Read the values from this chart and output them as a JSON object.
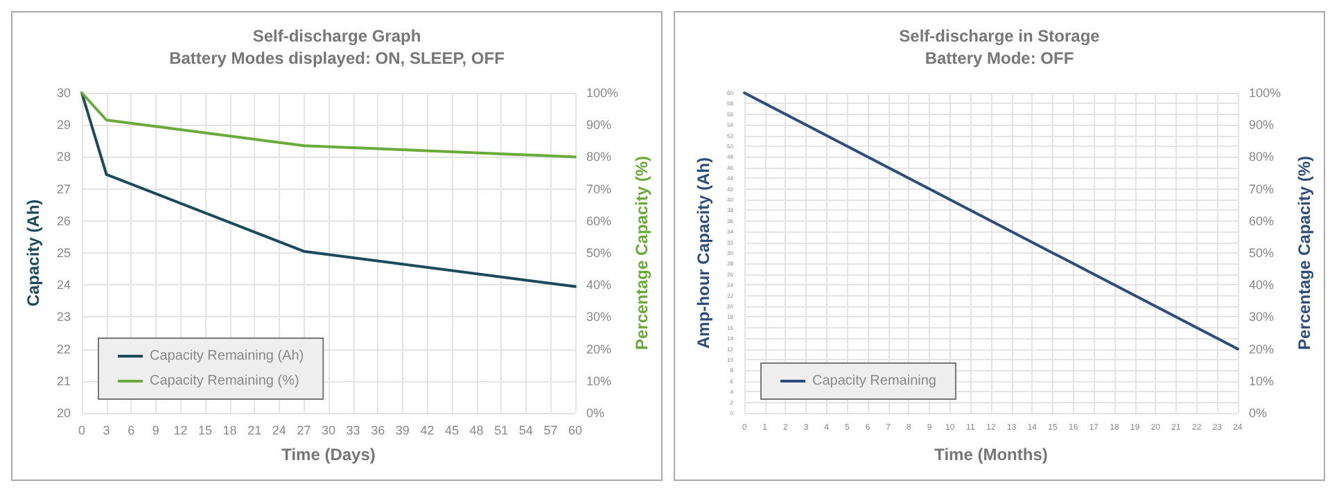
{
  "chart_data": [
    {
      "type": "line",
      "title": "Self-discharge Graph",
      "subtitle": "Battery Modes displayed: ON, SLEEP, OFF",
      "xlabel": "Time (Days)",
      "ylabel": "Capacity (Ah)",
      "y2label": "Percentage Capacity (%)",
      "x": [
        0,
        3,
        27,
        60
      ],
      "series": [
        {
          "name": "Capacity Remaining (Ah)",
          "color": "#1b4a5a",
          "values": [
            30,
            27.45,
            25.05,
            23.95
          ]
        },
        {
          "name": "Capacity Remaining (%)",
          "color": "#6aaa3a",
          "axis": "y2",
          "values": [
            100,
            91.5,
            83.5,
            80
          ]
        }
      ],
      "xlim": [
        0,
        60
      ],
      "xticks": [
        0,
        3,
        6,
        9,
        12,
        15,
        18,
        21,
        24,
        27,
        30,
        33,
        36,
        39,
        42,
        45,
        48,
        51,
        54,
        57,
        60
      ],
      "ylim": [
        20,
        30
      ],
      "yticks": [
        20,
        21,
        22,
        23,
        24,
        25,
        26,
        27,
        28,
        29,
        30
      ],
      "y2lim": [
        0,
        100
      ],
      "y2ticks": [
        {
          "value": 0,
          "label": "0%"
        },
        {
          "value": 10,
          "label": "10%"
        },
        {
          "value": 20,
          "label": "20%"
        },
        {
          "value": 30,
          "label": "30%"
        },
        {
          "value": 40,
          "label": "40%"
        },
        {
          "value": 50,
          "label": "50%"
        },
        {
          "value": 60,
          "label": "60%"
        },
        {
          "value": 70,
          "label": "70%"
        },
        {
          "value": 80,
          "label": "80%"
        },
        {
          "value": 90,
          "label": "90%"
        },
        {
          "value": 100,
          "label": "100%"
        }
      ],
      "grid": true,
      "legend": "bottom left",
      "marker": "none",
      "line_style": "solid"
    },
    {
      "type": "line",
      "title": "Self-discharge in Storage",
      "subtitle": "Battery Mode: OFF",
      "xlabel": "Time (Months)",
      "ylabel": "Amp-hour Capacity (Ah)",
      "y2label": "Percentage Capacity (%)",
      "x": [
        0,
        24
      ],
      "series": [
        {
          "name": "Capacity Remaining",
          "color": "#2e4d7a",
          "axis": "y2",
          "values": [
            100,
            20
          ]
        }
      ],
      "xlim": [
        0,
        24
      ],
      "xticks": [
        0,
        1,
        2,
        3,
        4,
        5,
        6,
        7,
        8,
        9,
        10,
        11,
        12,
        13,
        14,
        15,
        16,
        17,
        18,
        19,
        20,
        21,
        22,
        23,
        24
      ],
      "ylim": [
        0,
        60
      ],
      "yticks": [
        0,
        2,
        4,
        6,
        8,
        10,
        12,
        14,
        16,
        18,
        20,
        22,
        24,
        26,
        28,
        30,
        32,
        34,
        36,
        38,
        40,
        42,
        44,
        46,
        48,
        50,
        52,
        54,
        56,
        58,
        60
      ],
      "y2lim": [
        0,
        100
      ],
      "y2ticks": [
        {
          "value": 0,
          "label": "0%"
        },
        {
          "value": 10,
          "label": "10%"
        },
        {
          "value": 20,
          "label": "20%"
        },
        {
          "value": 30,
          "label": "30%"
        },
        {
          "value": 40,
          "label": "40%"
        },
        {
          "value": 50,
          "label": "50%"
        },
        {
          "value": 60,
          "label": "60%"
        },
        {
          "value": 70,
          "label": "70%"
        },
        {
          "value": 80,
          "label": "80%"
        },
        {
          "value": 90,
          "label": "90%"
        },
        {
          "value": 100,
          "label": "100%"
        }
      ],
      "grid": true,
      "legend": "bottom left",
      "marker": "none",
      "line_style": "solid"
    }
  ]
}
